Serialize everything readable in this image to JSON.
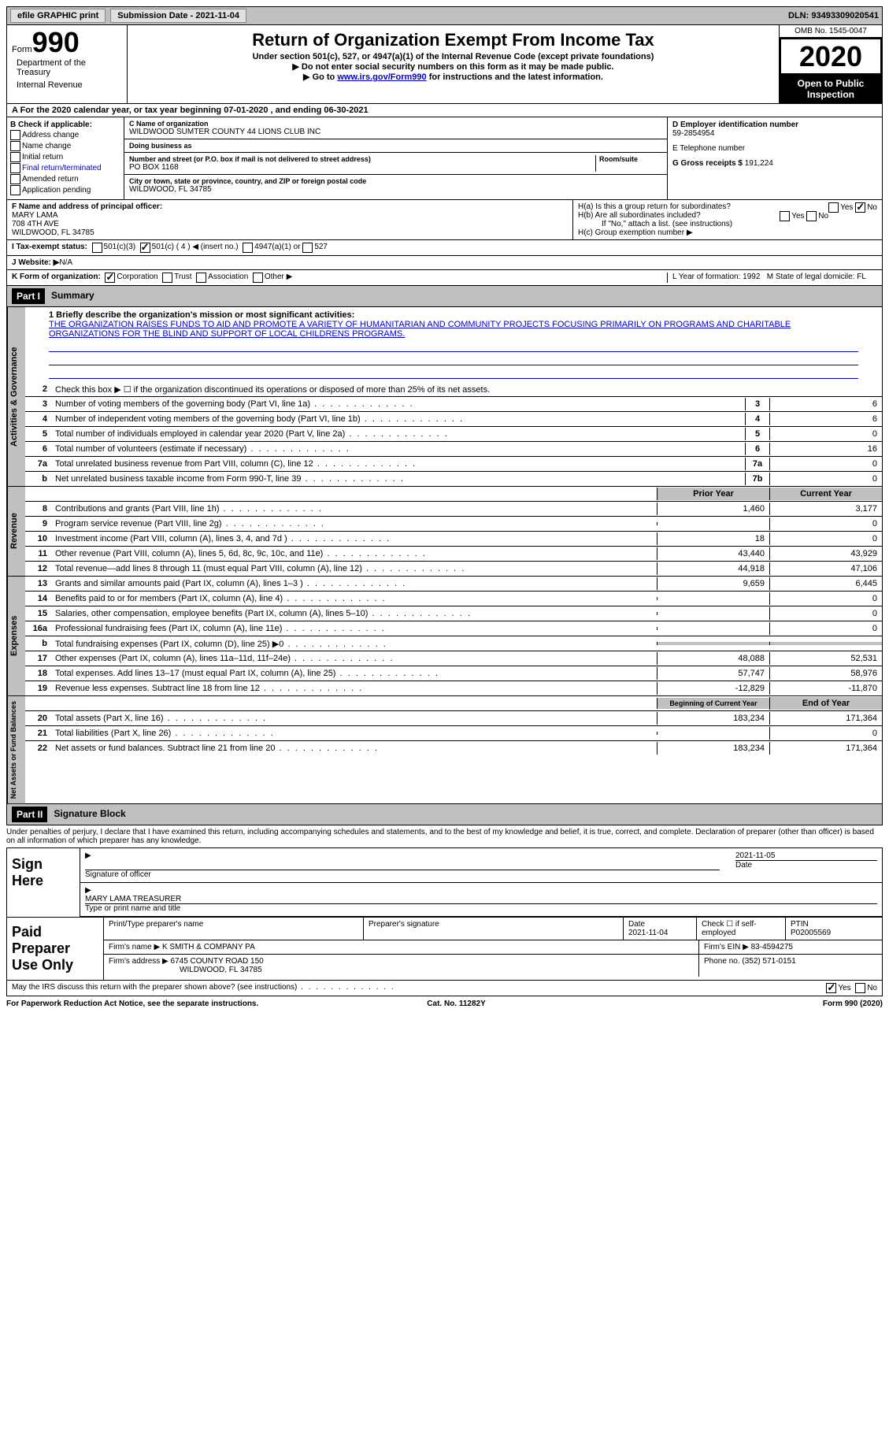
{
  "topbar": {
    "efile": "efile GRAPHIC print",
    "sub_label": "Submission Date - ",
    "sub_date": "2021-11-04",
    "dln_label": "DLN: ",
    "dln": "93493309020541"
  },
  "header": {
    "form_prefix": "Form",
    "form_num": "990",
    "dept1": "Department of the Treasury",
    "dept2": "Internal Revenue",
    "title": "Return of Organization Exempt From Income Tax",
    "sub1": "Under section 501(c), 527, or 4947(a)(1) of the Internal Revenue Code (except private foundations)",
    "sub2": "▶ Do not enter social security numbers on this form as it may be made public.",
    "sub3a": "▶ Go to ",
    "sub3link": "www.irs.gov/Form990",
    "sub3b": " for instructions and the latest information.",
    "omb": "OMB No. 1545-0047",
    "year": "2020",
    "open": "Open to Public Inspection"
  },
  "row_a": "A For the 2020 calendar year, or tax year beginning 07-01-2020   , and ending 06-30-2021",
  "col_b": {
    "hdr": "B Check if applicable:",
    "items": [
      "Address change",
      "Name change",
      "Initial return",
      "Final return/terminated",
      "Amended return",
      "Application pending"
    ]
  },
  "col_c": {
    "name_lbl": "C Name of organization",
    "name": "WILDWOOD SUMTER COUNTY 44 LIONS CLUB INC",
    "dba_lbl": "Doing business as",
    "addr_lbl": "Number and street (or P.O. box if mail is not delivered to street address)",
    "room_lbl": "Room/suite",
    "addr": "PO BOX 1168",
    "city_lbl": "City or town, state or province, country, and ZIP or foreign postal code",
    "city": "WILDWOOD, FL  34785"
  },
  "col_dg": {
    "d_lbl": "D Employer identification number",
    "d_val": "59-2854954",
    "e_lbl": "E Telephone number",
    "g_lbl": "G Gross receipts $ ",
    "g_val": "191,224"
  },
  "f": {
    "lbl": "F  Name and address of principal officer:",
    "l1": "MARY LAMA",
    "l2": "708 4TH AVE",
    "l3": "WILDWOOD, FL  34785"
  },
  "h": {
    "a": "H(a)  Is this a group return for subordinates?",
    "b": "H(b)  Are all subordinates included?",
    "b2": "If \"No,\" attach a list. (see instructions)",
    "c": "H(c)  Group exemption number ▶",
    "yes": "Yes",
    "no": "No"
  },
  "i": {
    "lbl": "I    Tax-exempt status:",
    "o1": "501(c)(3)",
    "o2": "501(c) ( 4 ) ◀ (insert no.)",
    "o3": "4947(a)(1) or",
    "o4": "527"
  },
  "j": {
    "lbl": "J   Website: ▶",
    "val": "  N/A"
  },
  "k": {
    "lbl": "K Form of organization:",
    "o1": "Corporation",
    "o2": "Trust",
    "o3": "Association",
    "o4": "Other ▶"
  },
  "lm": {
    "l": "L Year of formation: 1992",
    "m": "M State of legal domicile: FL"
  },
  "part1": {
    "hdr": "Part I",
    "title": "Summary"
  },
  "mission": {
    "lbl": "1   Briefly describe the organization's mission or most significant activities:",
    "txt": "THE ORGANIZATION RAISES FUNDS TO AID AND PROMOTE A VARIETY OF HUMANITARIAN AND COMMUNITY PROJECTS FOCUSING PRIMARILY ON PROGRAMS AND CHARITABLE ORGANIZATIONS FOR THE BLIND AND SUPPORT OF LOCAL CHILDRENS PROGRAMS."
  },
  "vtabs": {
    "gov": "Activities & Governance",
    "rev": "Revenue",
    "exp": "Expenses",
    "net": "Net Assets or Fund Balances"
  },
  "gov_lines": [
    {
      "n": "2",
      "t": "Check this box ▶ ☐  if the organization discontinued its operations or disposed of more than 25% of its net assets."
    },
    {
      "n": "3",
      "t": "Number of voting members of the governing body (Part VI, line 1a)",
      "box": "3",
      "v": "6"
    },
    {
      "n": "4",
      "t": "Number of independent voting members of the governing body (Part VI, line 1b)",
      "box": "4",
      "v": "6"
    },
    {
      "n": "5",
      "t": "Total number of individuals employed in calendar year 2020 (Part V, line 2a)",
      "box": "5",
      "v": "0"
    },
    {
      "n": "6",
      "t": "Total number of volunteers (estimate if necessary)",
      "box": "6",
      "v": "16"
    },
    {
      "n": "7a",
      "t": "Total unrelated business revenue from Part VIII, column (C), line 12",
      "box": "7a",
      "v": "0"
    },
    {
      "n": "b",
      "t": "Net unrelated business taxable income from Form 990-T, line 39",
      "box": "7b",
      "v": "0"
    }
  ],
  "colhdrs": {
    "prior": "Prior Year",
    "current": "Current Year",
    "beg": "Beginning of Current Year",
    "end": "End of Year"
  },
  "rev_lines": [
    {
      "n": "8",
      "t": "Contributions and grants (Part VIII, line 1h)",
      "p": "1,460",
      "c": "3,177"
    },
    {
      "n": "9",
      "t": "Program service revenue (Part VIII, line 2g)",
      "p": "",
      "c": "0"
    },
    {
      "n": "10",
      "t": "Investment income (Part VIII, column (A), lines 3, 4, and 7d )",
      "p": "18",
      "c": "0"
    },
    {
      "n": "11",
      "t": "Other revenue (Part VIII, column (A), lines 5, 6d, 8c, 9c, 10c, and 11e)",
      "p": "43,440",
      "c": "43,929"
    },
    {
      "n": "12",
      "t": "Total revenue—add lines 8 through 11 (must equal Part VIII, column (A), line 12)",
      "p": "44,918",
      "c": "47,106"
    }
  ],
  "exp_lines": [
    {
      "n": "13",
      "t": "Grants and similar amounts paid (Part IX, column (A), lines 1–3 )",
      "p": "9,659",
      "c": "6,445"
    },
    {
      "n": "14",
      "t": "Benefits paid to or for members (Part IX, column (A), line 4)",
      "p": "",
      "c": "0"
    },
    {
      "n": "15",
      "t": "Salaries, other compensation, employee benefits (Part IX, column (A), lines 5–10)",
      "p": "",
      "c": "0"
    },
    {
      "n": "16a",
      "t": "Professional fundraising fees (Part IX, column (A), line 11e)",
      "p": "",
      "c": "0"
    },
    {
      "n": "b",
      "t": "Total fundraising expenses (Part IX, column (D), line 25) ▶0",
      "p": "shade",
      "c": "shade"
    },
    {
      "n": "17",
      "t": "Other expenses (Part IX, column (A), lines 11a–11d, 11f–24e)",
      "p": "48,088",
      "c": "52,531"
    },
    {
      "n": "18",
      "t": "Total expenses. Add lines 13–17 (must equal Part IX, column (A), line 25)",
      "p": "57,747",
      "c": "58,976"
    },
    {
      "n": "19",
      "t": "Revenue less expenses. Subtract line 18 from line 12",
      "p": "-12,829",
      "c": "-11,870"
    }
  ],
  "net_lines": [
    {
      "n": "20",
      "t": "Total assets (Part X, line 16)",
      "p": "183,234",
      "c": "171,364"
    },
    {
      "n": "21",
      "t": "Total liabilities (Part X, line 26)",
      "p": "",
      "c": "0"
    },
    {
      "n": "22",
      "t": "Net assets or fund balances. Subtract line 21 from line 20",
      "p": "183,234",
      "c": "171,364"
    }
  ],
  "part2": {
    "hdr": "Part II",
    "title": "Signature Block"
  },
  "penalty": "Under penalties of perjury, I declare that I have examined this return, including accompanying schedules and statements, and to the best of my knowledge and belief, it is true, correct, and complete. Declaration of preparer (other than officer) is based on all information of which preparer has any knowledge.",
  "sign": {
    "here": "Sign Here",
    "sig_lbl": "Signature of officer",
    "date_lbl": "Date",
    "date": "2021-11-05",
    "name": "MARY LAMA  TREASURER",
    "name_lbl": "Type or print name and title"
  },
  "prep": {
    "hdr": "Paid Preparer Use Only",
    "h1": "Print/Type preparer's name",
    "h2": "Preparer's signature",
    "h3": "Date",
    "h4": "Check ☐ if self-employed",
    "h5": "PTIN",
    "date": "2021-11-04",
    "ptin": "P02005569",
    "firm_lbl": "Firm's name   ▶ ",
    "firm": "K SMITH & COMPANY PA",
    "ein_lbl": "Firm's EIN ▶ ",
    "ein": "83-4594275",
    "addr_lbl": "Firm's address ▶ ",
    "addr1": "6745 COUNTY ROAD 150",
    "addr2": "WILDWOOD, FL  34785",
    "phone_lbl": "Phone no. ",
    "phone": "(352) 571-0151"
  },
  "discuss": "May the IRS discuss this return with the preparer shown above? (see instructions)",
  "footer": {
    "l": "For Paperwork Reduction Act Notice, see the separate instructions.",
    "c": "Cat. No. 11282Y",
    "r": "Form 990 (2020)"
  }
}
